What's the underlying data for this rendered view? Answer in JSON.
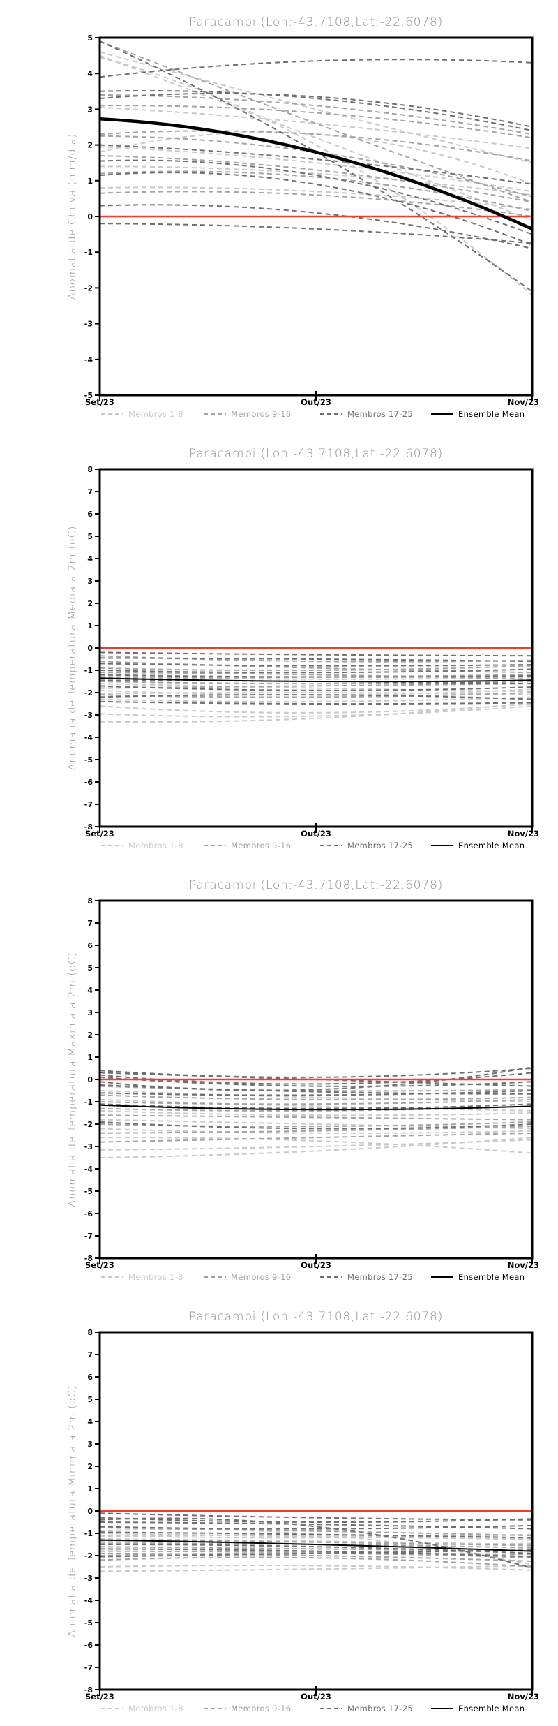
{
  "colors": {
    "members_1_8": "#c9c9c9",
    "members_9_16": "#a3a3a3",
    "members_17_25": "#6f6f6f",
    "ensemble_mean": "#000000",
    "zero_line": "#f23b32",
    "title_text": "#8f8f8f",
    "axis_text": "#000000"
  },
  "legend": {
    "items": [
      {
        "label": "Membros 1-8",
        "color": "#c9c9c9",
        "style": "dashed"
      },
      {
        "label": "Membros 9-16",
        "color": "#a3a3a3",
        "style": "dashed"
      },
      {
        "label": "Membros 17-25",
        "color": "#6f6f6f",
        "style": "dashed"
      },
      {
        "label": "Ensemble Mean",
        "color": "#000000",
        "style": "solid"
      }
    ]
  },
  "chart_data": [
    {
      "type": "line",
      "title": "Paracambi (Lon:-43.7108,Lat:-22.6078)",
      "ylabel": "Anomalia de Chuva (mm/dia)",
      "x": [
        "Set/23",
        "Out/23",
        "Nov/23"
      ],
      "ylim": [
        -5,
        5
      ],
      "ytick_step": 1,
      "zero_line": 0,
      "grid": false,
      "legend_position": "bottom",
      "mean_stroke": 4.5,
      "series": [
        {
          "name": "Membros 1-8",
          "group": "members_1_8",
          "members": [
            [
              4.6,
              3.0,
              1.5
            ],
            [
              4.5,
              2.2,
              -0.1
            ],
            [
              4.45,
              2.0,
              -2.2
            ],
            [
              3.05,
              2.6,
              1.9
            ],
            [
              1.95,
              1.5,
              0.7
            ],
            [
              1.8,
              2.3,
              0.9
            ],
            [
              1.4,
              1.2,
              0.6
            ],
            [
              0.8,
              0.7,
              0.2
            ]
          ]
        },
        {
          "name": "Membros 9-16",
          "group": "members_9_16",
          "members": [
            [
              4.9,
              2.6,
              0.4
            ],
            [
              3.4,
              3.1,
              2.3
            ],
            [
              3.1,
              2.9,
              2.2
            ],
            [
              2.3,
              2.3,
              1.55
            ],
            [
              2.25,
              1.8,
              0.55
            ],
            [
              1.7,
              1.3,
              0.4
            ],
            [
              1.2,
              1.1,
              0.15
            ],
            [
              0.65,
              0.6,
              0.0
            ]
          ]
        },
        {
          "name": "Membros 17-25",
          "group": "members_17_25",
          "members": [
            [
              4.9,
              1.8,
              -2.1
            ],
            [
              3.9,
              4.35,
              4.3
            ],
            [
              3.5,
              3.3,
              2.4
            ],
            [
              3.3,
              3.35,
              2.5
            ],
            [
              2.0,
              1.6,
              0.9
            ],
            [
              1.55,
              1.15,
              -0.5
            ],
            [
              1.15,
              0.9,
              -0.8
            ],
            [
              0.3,
              0.1,
              -0.9
            ],
            [
              -0.2,
              -0.35,
              -0.75
            ]
          ]
        },
        {
          "name": "Ensemble Mean",
          "group": "ensemble_mean",
          "values": [
            2.73,
            1.8,
            -0.35
          ]
        }
      ]
    },
    {
      "type": "line",
      "title": "Paracambi (Lon:-43.7108,Lat:-22.6078)",
      "ylabel": "Anomalia de Temperatura Media a 2m (oC)",
      "x": [
        "Set/23",
        "Out/23",
        "Nov/23"
      ],
      "ylim": [
        -8,
        8
      ],
      "ytick_step": 1,
      "zero_line": 0,
      "grid": false,
      "legend_position": "bottom",
      "mean_stroke": 2,
      "series": [
        {
          "name": "Membros 1-8",
          "group": "members_1_8",
          "members": [
            [
              -2.6,
              -2.9,
              -2.5
            ],
            [
              -2.95,
              -3.05,
              -2.6
            ],
            [
              -3.3,
              -3.15,
              -2.45
            ],
            [
              -2.3,
              -2.4,
              -2.2
            ],
            [
              -1.9,
              -2.1,
              -1.85
            ],
            [
              -1.6,
              -1.8,
              -1.95
            ],
            [
              -1.25,
              -1.4,
              -1.3
            ],
            [
              -2.05,
              -2.0,
              -2.1
            ]
          ]
        },
        {
          "name": "Membros 9-16",
          "group": "members_9_16",
          "members": [
            [
              -0.6,
              -0.9,
              -1.1
            ],
            [
              -0.9,
              -1.0,
              -0.8
            ],
            [
              -1.1,
              -1.2,
              -1.4
            ],
            [
              -1.35,
              -1.3,
              -1.2
            ],
            [
              -1.5,
              -1.6,
              -1.5
            ],
            [
              -1.8,
              -1.7,
              -1.6
            ],
            [
              -2.1,
              -2.2,
              -2.0
            ],
            [
              -0.35,
              -0.6,
              -0.55
            ]
          ]
        },
        {
          "name": "Membros 17-25",
          "group": "members_17_25",
          "members": [
            [
              -0.2,
              -0.3,
              -0.35
            ],
            [
              -0.45,
              -0.5,
              -0.6
            ],
            [
              -0.7,
              -0.8,
              -0.75
            ],
            [
              -1.0,
              -1.1,
              -0.95
            ],
            [
              -1.2,
              -1.3,
              -1.25
            ],
            [
              -1.45,
              -1.5,
              -1.6
            ],
            [
              -1.7,
              -1.9,
              -1.75
            ],
            [
              -2.2,
              -2.1,
              -2.3
            ],
            [
              -2.4,
              -2.5,
              -2.45
            ]
          ]
        },
        {
          "name": "Ensemble Mean",
          "group": "ensemble_mean",
          "values": [
            -1.35,
            -1.5,
            -1.45
          ]
        }
      ]
    },
    {
      "type": "line",
      "title": "Paracambi (Lon:-43.7108,Lat:-22.6078)",
      "ylabel": "Anomalia de Temperatura Maxima a 2m (oC)",
      "x": [
        "Set/23",
        "Out/23",
        "Nov/23"
      ],
      "ylim": [
        -8,
        8
      ],
      "ytick_step": 1,
      "zero_line": 0,
      "grid": false,
      "legend_position": "bottom",
      "mean_stroke": 2,
      "series": [
        {
          "name": "Membros 1-8",
          "group": "members_1_8",
          "members": [
            [
              -3.5,
              -3.2,
              -2.6
            ],
            [
              -3.15,
              -3.0,
              -2.7
            ],
            [
              -2.6,
              -2.75,
              -3.3
            ],
            [
              -2.2,
              -2.4,
              -2.3
            ],
            [
              -1.8,
              -2.0,
              -2.2
            ],
            [
              -1.4,
              -1.6,
              -1.5
            ],
            [
              -0.9,
              -1.2,
              -1.4
            ],
            [
              -0.5,
              -0.8,
              -1.0
            ]
          ]
        },
        {
          "name": "Membros 9-16",
          "group": "members_9_16",
          "members": [
            [
              -2.4,
              -2.3,
              -2.1
            ],
            [
              -2.0,
              -2.1,
              -1.9
            ],
            [
              -1.6,
              -1.7,
              -1.8
            ],
            [
              -1.3,
              -1.4,
              -1.2
            ],
            [
              -1.0,
              -1.1,
              -0.9
            ],
            [
              -0.7,
              -0.9,
              -0.8
            ],
            [
              -0.3,
              -0.5,
              -0.45
            ],
            [
              -2.8,
              -2.6,
              -2.4
            ]
          ]
        },
        {
          "name": "Membros 17-25",
          "group": "members_17_25",
          "members": [
            [
              0.4,
              0.1,
              0.5
            ],
            [
              0.3,
              0.0,
              -0.3
            ],
            [
              0.2,
              -0.2,
              0.3
            ],
            [
              0.1,
              -0.3,
              -0.1
            ],
            [
              -0.1,
              -0.45,
              0.55
            ],
            [
              -0.25,
              -0.55,
              -0.65
            ],
            [
              -0.6,
              -0.7,
              -0.5
            ],
            [
              -1.1,
              -1.3,
              -1.1
            ],
            [
              -1.9,
              -2.2,
              -2.0
            ]
          ]
        },
        {
          "name": "Ensemble Mean",
          "group": "ensemble_mean",
          "values": [
            -1.15,
            -1.35,
            -1.2
          ]
        }
      ]
    },
    {
      "type": "line",
      "title": "Paracambi (Lon:-43.7108,Lat:-22.6078)",
      "ylabel": "Anomalia de Temperatura Minima a 2m (oC)",
      "x": [
        "Set/23",
        "Out/23",
        "Nov/23"
      ],
      "ylim": [
        -8,
        8
      ],
      "ytick_step": 1,
      "zero_line": 0,
      "grid": false,
      "legend_position": "bottom",
      "mean_stroke": 2,
      "series": [
        {
          "name": "Membros 1-8",
          "group": "members_1_8",
          "members": [
            [
              -2.7,
              -2.6,
              -2.45
            ],
            [
              -2.5,
              -2.45,
              -2.65
            ],
            [
              -1.1,
              -1.2,
              -1.05
            ],
            [
              -1.25,
              -1.35,
              -1.5
            ],
            [
              -1.0,
              -1.15,
              -1.25
            ],
            [
              -0.9,
              -1.05,
              -2.4
            ],
            [
              -1.35,
              -1.5,
              -1.45
            ],
            [
              -1.15,
              -1.1,
              -1.3
            ]
          ]
        },
        {
          "name": "Membros 9-16",
          "group": "members_9_16",
          "members": [
            [
              -2.0,
              -1.9,
              -2.1
            ],
            [
              -1.8,
              -1.85,
              -1.95
            ],
            [
              -1.6,
              -1.7,
              -1.8
            ],
            [
              -1.45,
              -1.5,
              -1.65
            ],
            [
              -1.3,
              -1.4,
              -1.55
            ],
            [
              -2.2,
              -2.1,
              -2.5
            ],
            [
              -1.9,
              -2.0,
              -2.25
            ],
            [
              -0.75,
              -0.9,
              -1.1
            ]
          ]
        },
        {
          "name": "Membros 17-25",
          "group": "members_17_25",
          "members": [
            [
              -0.1,
              -0.3,
              -0.4
            ],
            [
              -0.3,
              -0.5,
              -0.35
            ],
            [
              -0.5,
              -0.6,
              -0.8
            ],
            [
              -0.7,
              -0.8,
              -0.65
            ],
            [
              -0.95,
              -1.05,
              -1.2
            ],
            [
              -1.5,
              -1.6,
              -1.9
            ],
            [
              -1.7,
              -1.8,
              -2.05
            ],
            [
              -2.05,
              -1.9,
              -1.75
            ],
            [
              -0.4,
              -0.7,
              -2.55
            ]
          ]
        },
        {
          "name": "Ensemble Mean",
          "group": "ensemble_mean",
          "values": [
            -1.3,
            -1.5,
            -1.8
          ]
        }
      ]
    }
  ]
}
